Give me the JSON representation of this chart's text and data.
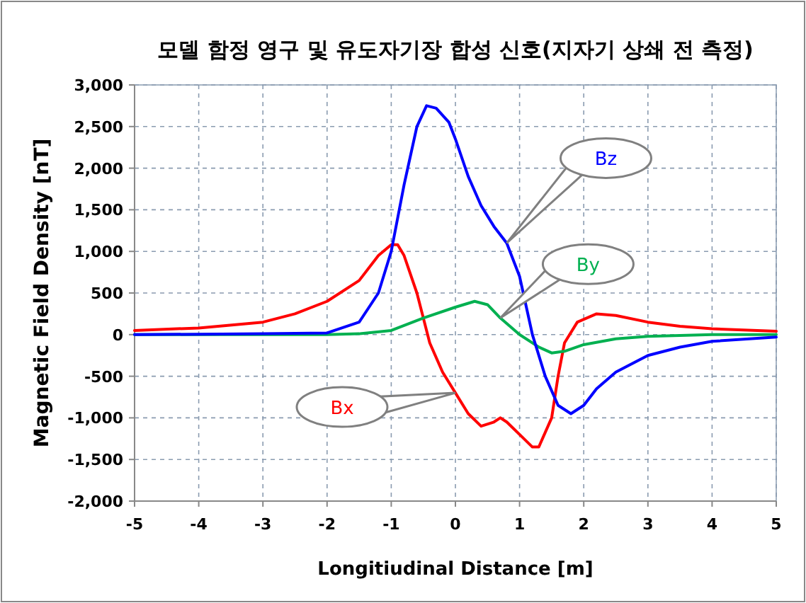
{
  "chart_data": {
    "type": "line",
    "title": "모델 함정 영구 및 유도자기장 합성 신호(지자기 상쇄 전 측정)",
    "xlabel": "Longitiudinal Distance [m]",
    "ylabel": "Magnetic Field Density [nT]",
    "xlim": [
      -5,
      5
    ],
    "xticks": [
      -5,
      -4,
      -3,
      -2,
      -1,
      0,
      1,
      2,
      3,
      4,
      5
    ],
    "ylim": [
      -2000,
      3000
    ],
    "yticks": [
      {
        "value": -2000,
        "label": "-2,000"
      },
      {
        "value": -1500,
        "label": "-1,500"
      },
      {
        "value": -1000,
        "label": "-1,000"
      },
      {
        "value": -500,
        "label": "-500"
      },
      {
        "value": 0,
        "label": "0"
      },
      {
        "value": 500,
        "label": "500"
      },
      {
        "value": 1000,
        "label": "1,000"
      },
      {
        "value": 1500,
        "label": "1,500"
      },
      {
        "value": 2000,
        "label": "2,000"
      },
      {
        "value": 2500,
        "label": "2,500"
      },
      {
        "value": 3000,
        "label": "3,000"
      }
    ],
    "grid": true,
    "series": [
      {
        "name": "Bx",
        "color": "#ff0000",
        "x": [
          -5,
          -4,
          -3,
          -2.5,
          -2,
          -1.5,
          -1.2,
          -1,
          -0.9,
          -0.8,
          -0.6,
          -0.4,
          -0.2,
          0,
          0.2,
          0.4,
          0.6,
          0.7,
          0.8,
          1,
          1.2,
          1.3,
          1.5,
          1.6,
          1.7,
          1.9,
          2.2,
          2.5,
          3,
          3.5,
          4,
          5
        ],
        "values": [
          50,
          80,
          150,
          250,
          400,
          650,
          950,
          1080,
          1080,
          950,
          500,
          -100,
          -450,
          -700,
          -950,
          -1100,
          -1050,
          -1000,
          -1050,
          -1200,
          -1350,
          -1350,
          -1000,
          -500,
          -100,
          150,
          250,
          230,
          150,
          100,
          70,
          40
        ]
      },
      {
        "name": "By",
        "color": "#00b050",
        "x": [
          -5,
          -2,
          -1.5,
          -1,
          -0.5,
          0,
          0.3,
          0.5,
          0.7,
          1,
          1.3,
          1.5,
          1.7,
          2,
          2.5,
          3,
          4,
          5
        ],
        "values": [
          0,
          0,
          10,
          50,
          200,
          330,
          400,
          360,
          200,
          0,
          -150,
          -220,
          -200,
          -120,
          -50,
          -20,
          0,
          0
        ]
      },
      {
        "name": "Bz",
        "color": "#0000ff",
        "x": [
          -5,
          -3,
          -2,
          -1.5,
          -1.2,
          -1,
          -0.8,
          -0.6,
          -0.45,
          -0.3,
          -0.1,
          0,
          0.2,
          0.4,
          0.6,
          0.8,
          1,
          1.2,
          1.4,
          1.6,
          1.8,
          2,
          2.2,
          2.5,
          3,
          3.5,
          4,
          5
        ],
        "values": [
          0,
          10,
          20,
          150,
          500,
          1000,
          1800,
          2500,
          2750,
          2720,
          2550,
          2350,
          1900,
          1550,
          1300,
          1100,
          700,
          0,
          -500,
          -850,
          -950,
          -850,
          -650,
          -450,
          -250,
          -150,
          -80,
          -30
        ]
      }
    ]
  }
}
